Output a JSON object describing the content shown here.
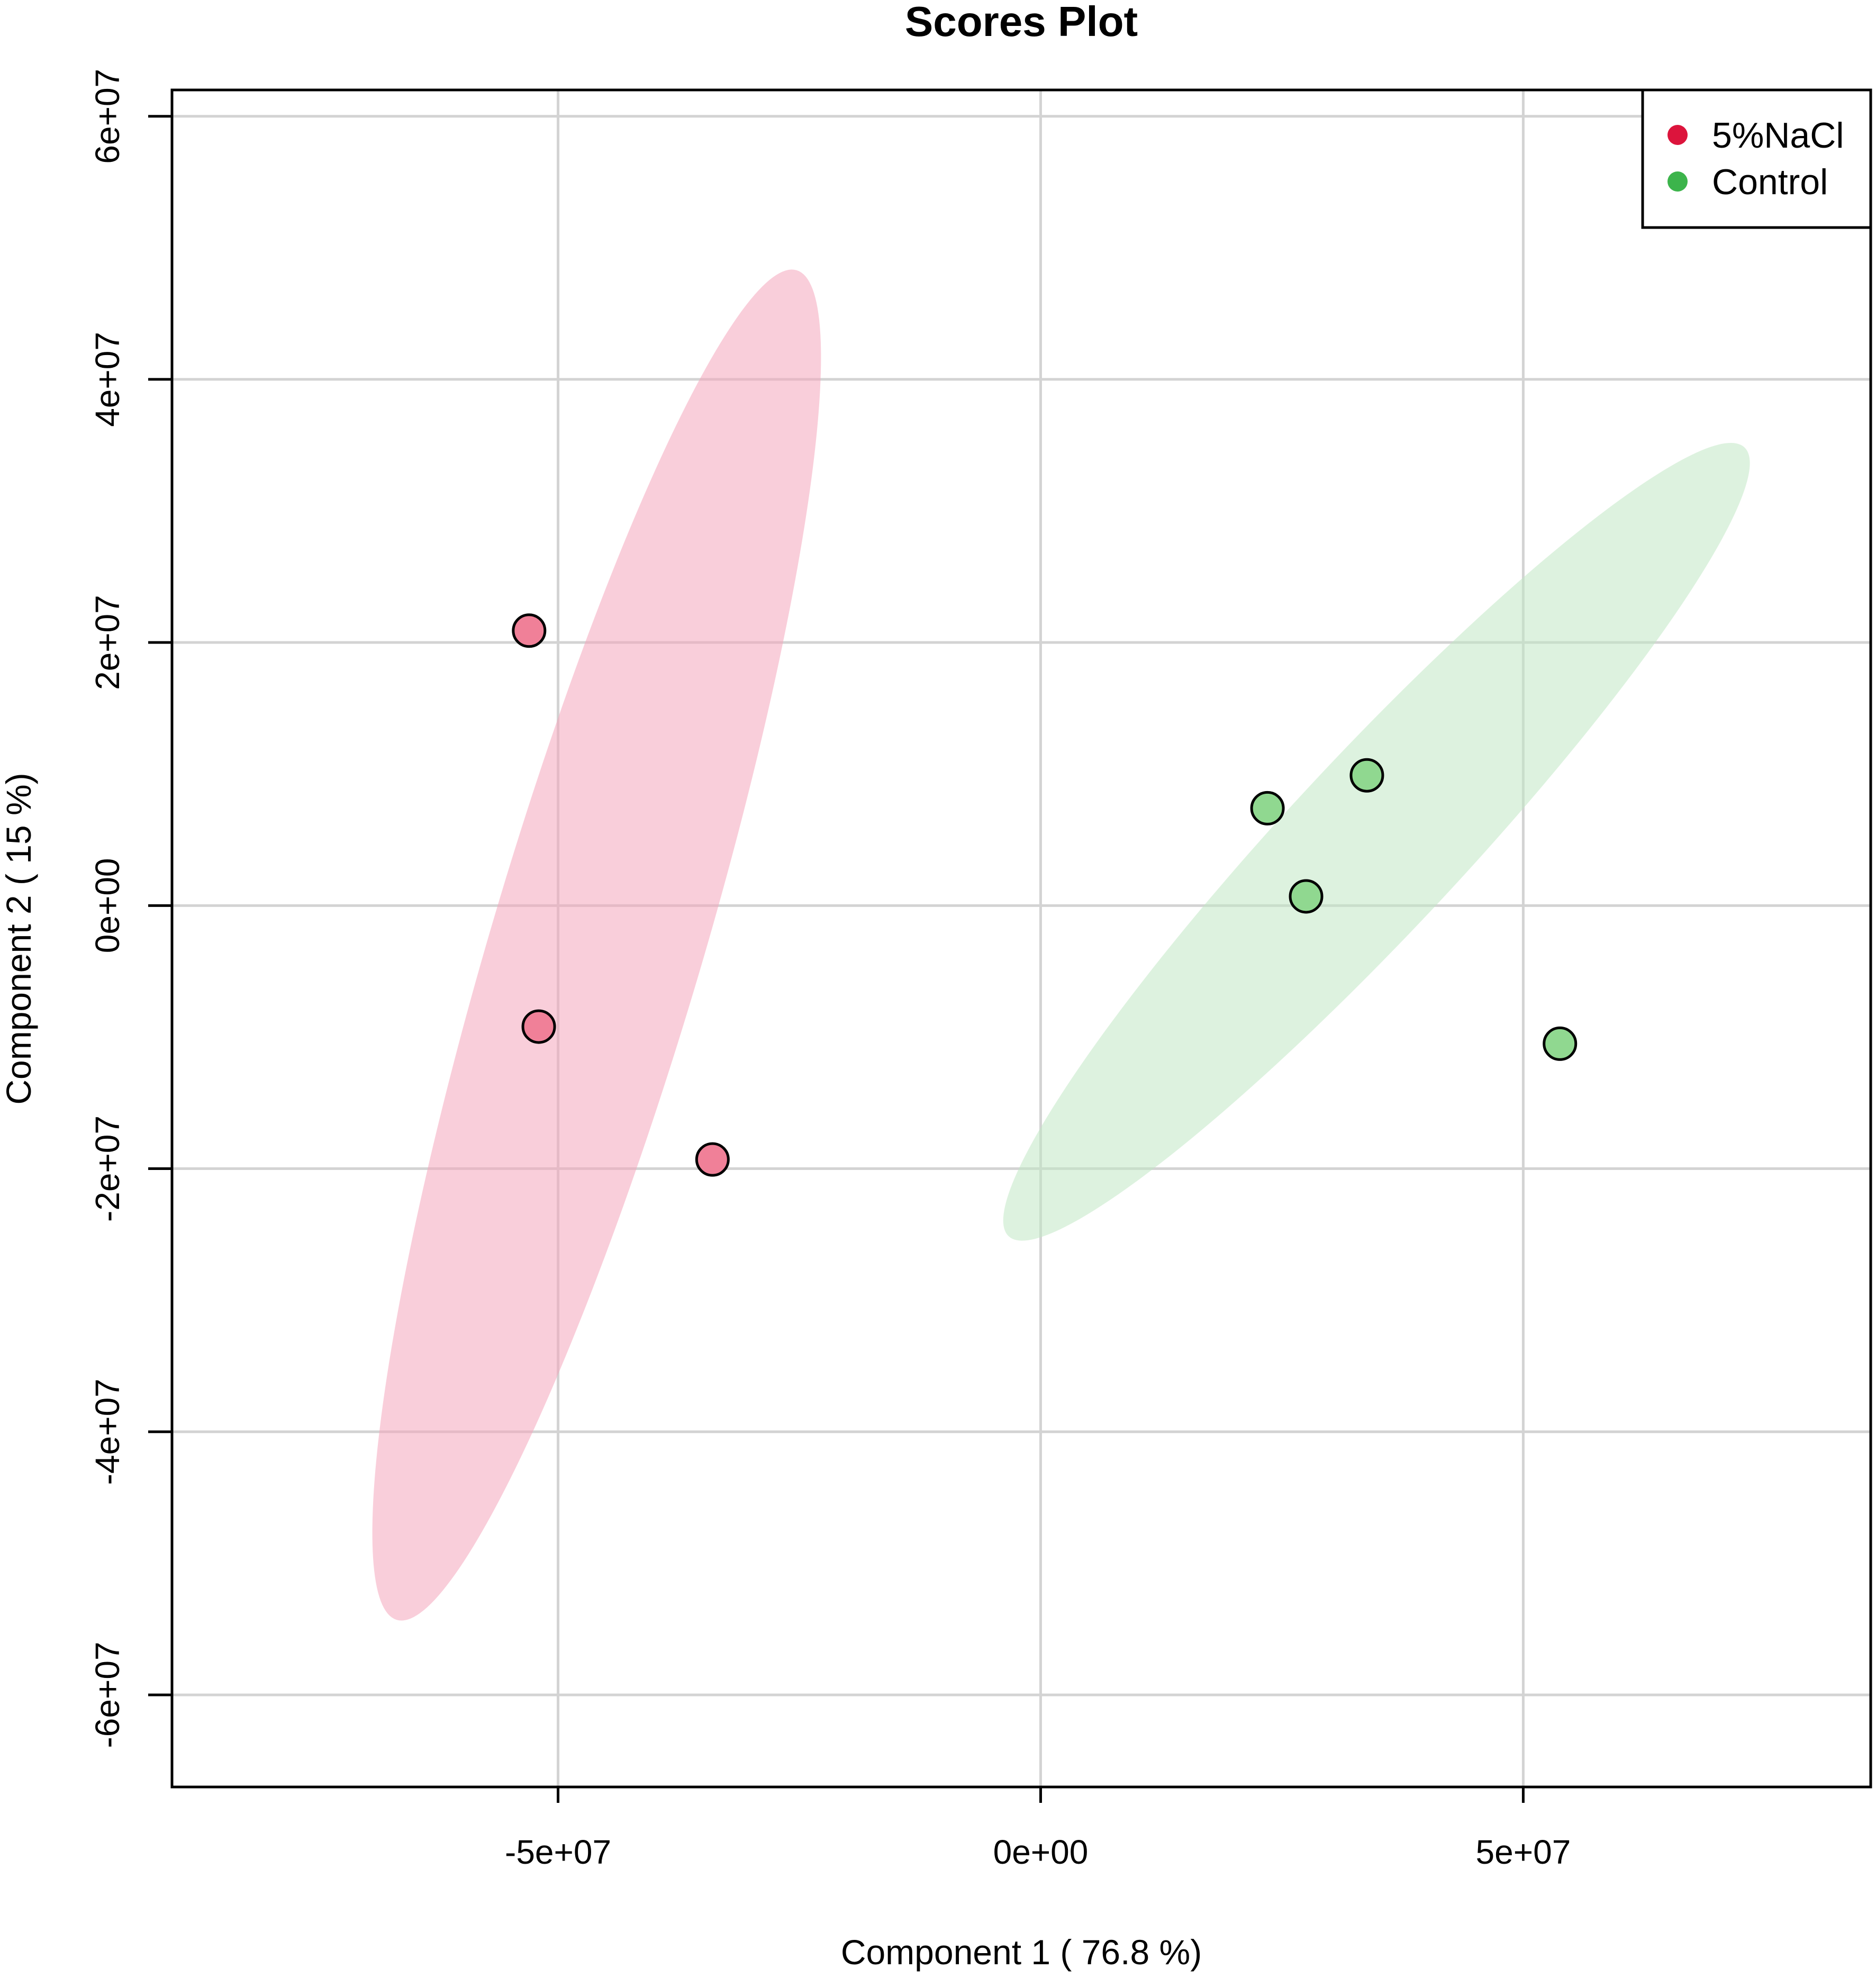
{
  "chart_data": {
    "type": "scatter",
    "title": "Scores Plot",
    "xlabel": "Component 1 ( 76.8 %)",
    "ylabel": "Component 2 ( 15 %)",
    "xlim": [
      -90000000,
      86000000
    ],
    "ylim": [
      -67000000,
      62000000
    ],
    "x_ticks": [
      -50000000,
      0,
      50000000
    ],
    "x_tick_labels": [
      "-5e+07",
      "0e+00",
      "5e+07"
    ],
    "y_ticks": [
      -60000000,
      -40000000,
      -20000000,
      0,
      20000000,
      40000000,
      60000000
    ],
    "y_tick_labels": [
      "-6e+07",
      "-4e+07",
      "-2e+07",
      "0e+00",
      "2e+07",
      "4e+07",
      "6e+07"
    ],
    "grid": true,
    "legend_position": "top-right",
    "series": [
      {
        "name": "5%NaCl",
        "legend_color": "#dc143c",
        "point_color": "#f08098",
        "ellipse_color": "#f4a6bb",
        "points": [
          {
            "x": -53000000,
            "y": 20900000
          },
          {
            "x": -52000000,
            "y": -9200000
          },
          {
            "x": -34000000,
            "y": -19300000
          }
        ],
        "ellipse": {
          "cx": -46000000,
          "cy": -3000000,
          "rx": 11000000,
          "ry": 53500000,
          "angle_deg": 16.5
        }
      },
      {
        "name": "Control",
        "legend_color": "#3cb44b",
        "point_color": "#90d890",
        "ellipse_color": "#c1e8c5",
        "points": [
          {
            "x": 23500000,
            "y": 7400000
          },
          {
            "x": 27500000,
            "y": 700000
          },
          {
            "x": 33800000,
            "y": 9900000
          },
          {
            "x": 53800000,
            "y": -10500000
          }
        ],
        "ellipse": {
          "cx": 34800000,
          "cy": 4850000,
          "rx": 9000000,
          "ry": 41000000,
          "angle_deg": 43
        }
      }
    ]
  }
}
